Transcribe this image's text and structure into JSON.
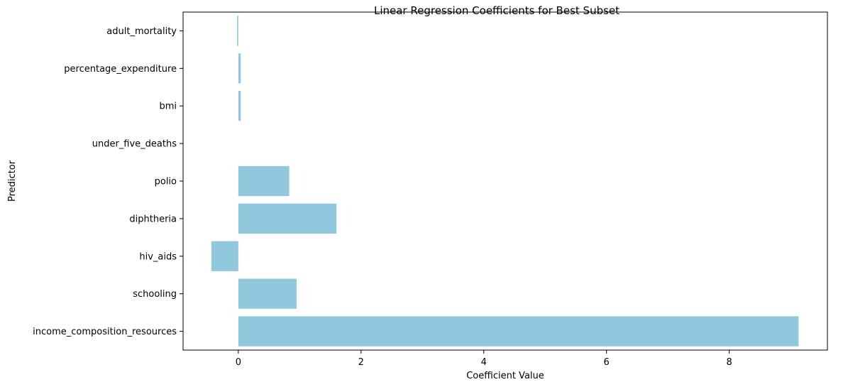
{
  "chart_data": {
    "type": "bar",
    "orientation": "horizontal",
    "title": "Linear Regression Coefficients for Best Subset",
    "xlabel": "Coefficient Value",
    "ylabel": "Predictor",
    "categories": [
      "adult_mortality",
      "percentage_expenditure",
      "bmi",
      "under_five_deaths",
      "polio",
      "diphtheria",
      "hiv_aids",
      "schooling",
      "income_composition_resources"
    ],
    "values": [
      -0.02,
      0.04,
      0.04,
      0.0,
      0.83,
      1.6,
      -0.44,
      0.95,
      9.13
    ],
    "xlim": [
      -0.9,
      9.6
    ],
    "xticks": [
      0,
      2,
      4,
      6,
      8
    ],
    "bar_color": "#92c8de",
    "grid": false,
    "legend": "none"
  }
}
